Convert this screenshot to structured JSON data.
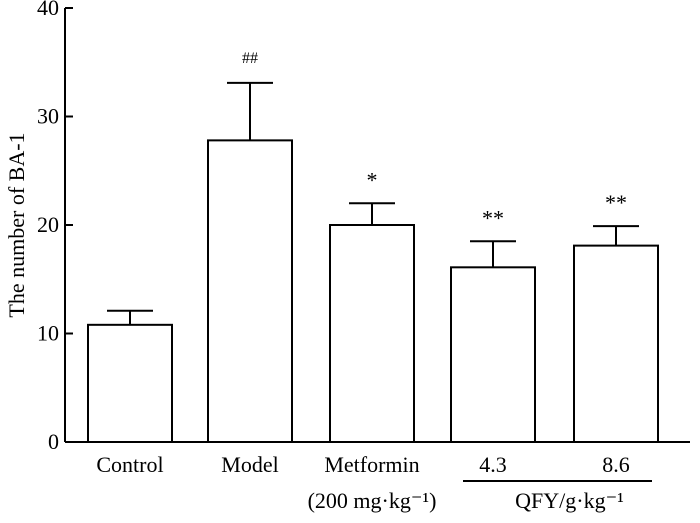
{
  "chart_data": {
    "type": "bar",
    "title": "",
    "xlabel": "",
    "ylabel": "The number of BA-1",
    "ylim": [
      0,
      40
    ],
    "yticks": [
      0,
      10,
      20,
      30,
      40
    ],
    "categories": [
      {
        "label": "Control",
        "sublabel": ""
      },
      {
        "label": "Model",
        "sublabel": ""
      },
      {
        "label": "Metformin",
        "sublabel": "(200 mg·kg⁻¹)"
      },
      {
        "label": "4.3",
        "sublabel": ""
      },
      {
        "label": "8.6",
        "sublabel": ""
      }
    ],
    "values": [
      10.8,
      27.8,
      20.0,
      16.1,
      18.1
    ],
    "errors": [
      1.3,
      5.3,
      2.0,
      2.4,
      1.8
    ],
    "significance": [
      "",
      "##",
      "*",
      "**",
      "**"
    ],
    "group_label": "QFY/g·kg⁻¹",
    "group_members": [
      3,
      4
    ]
  }
}
